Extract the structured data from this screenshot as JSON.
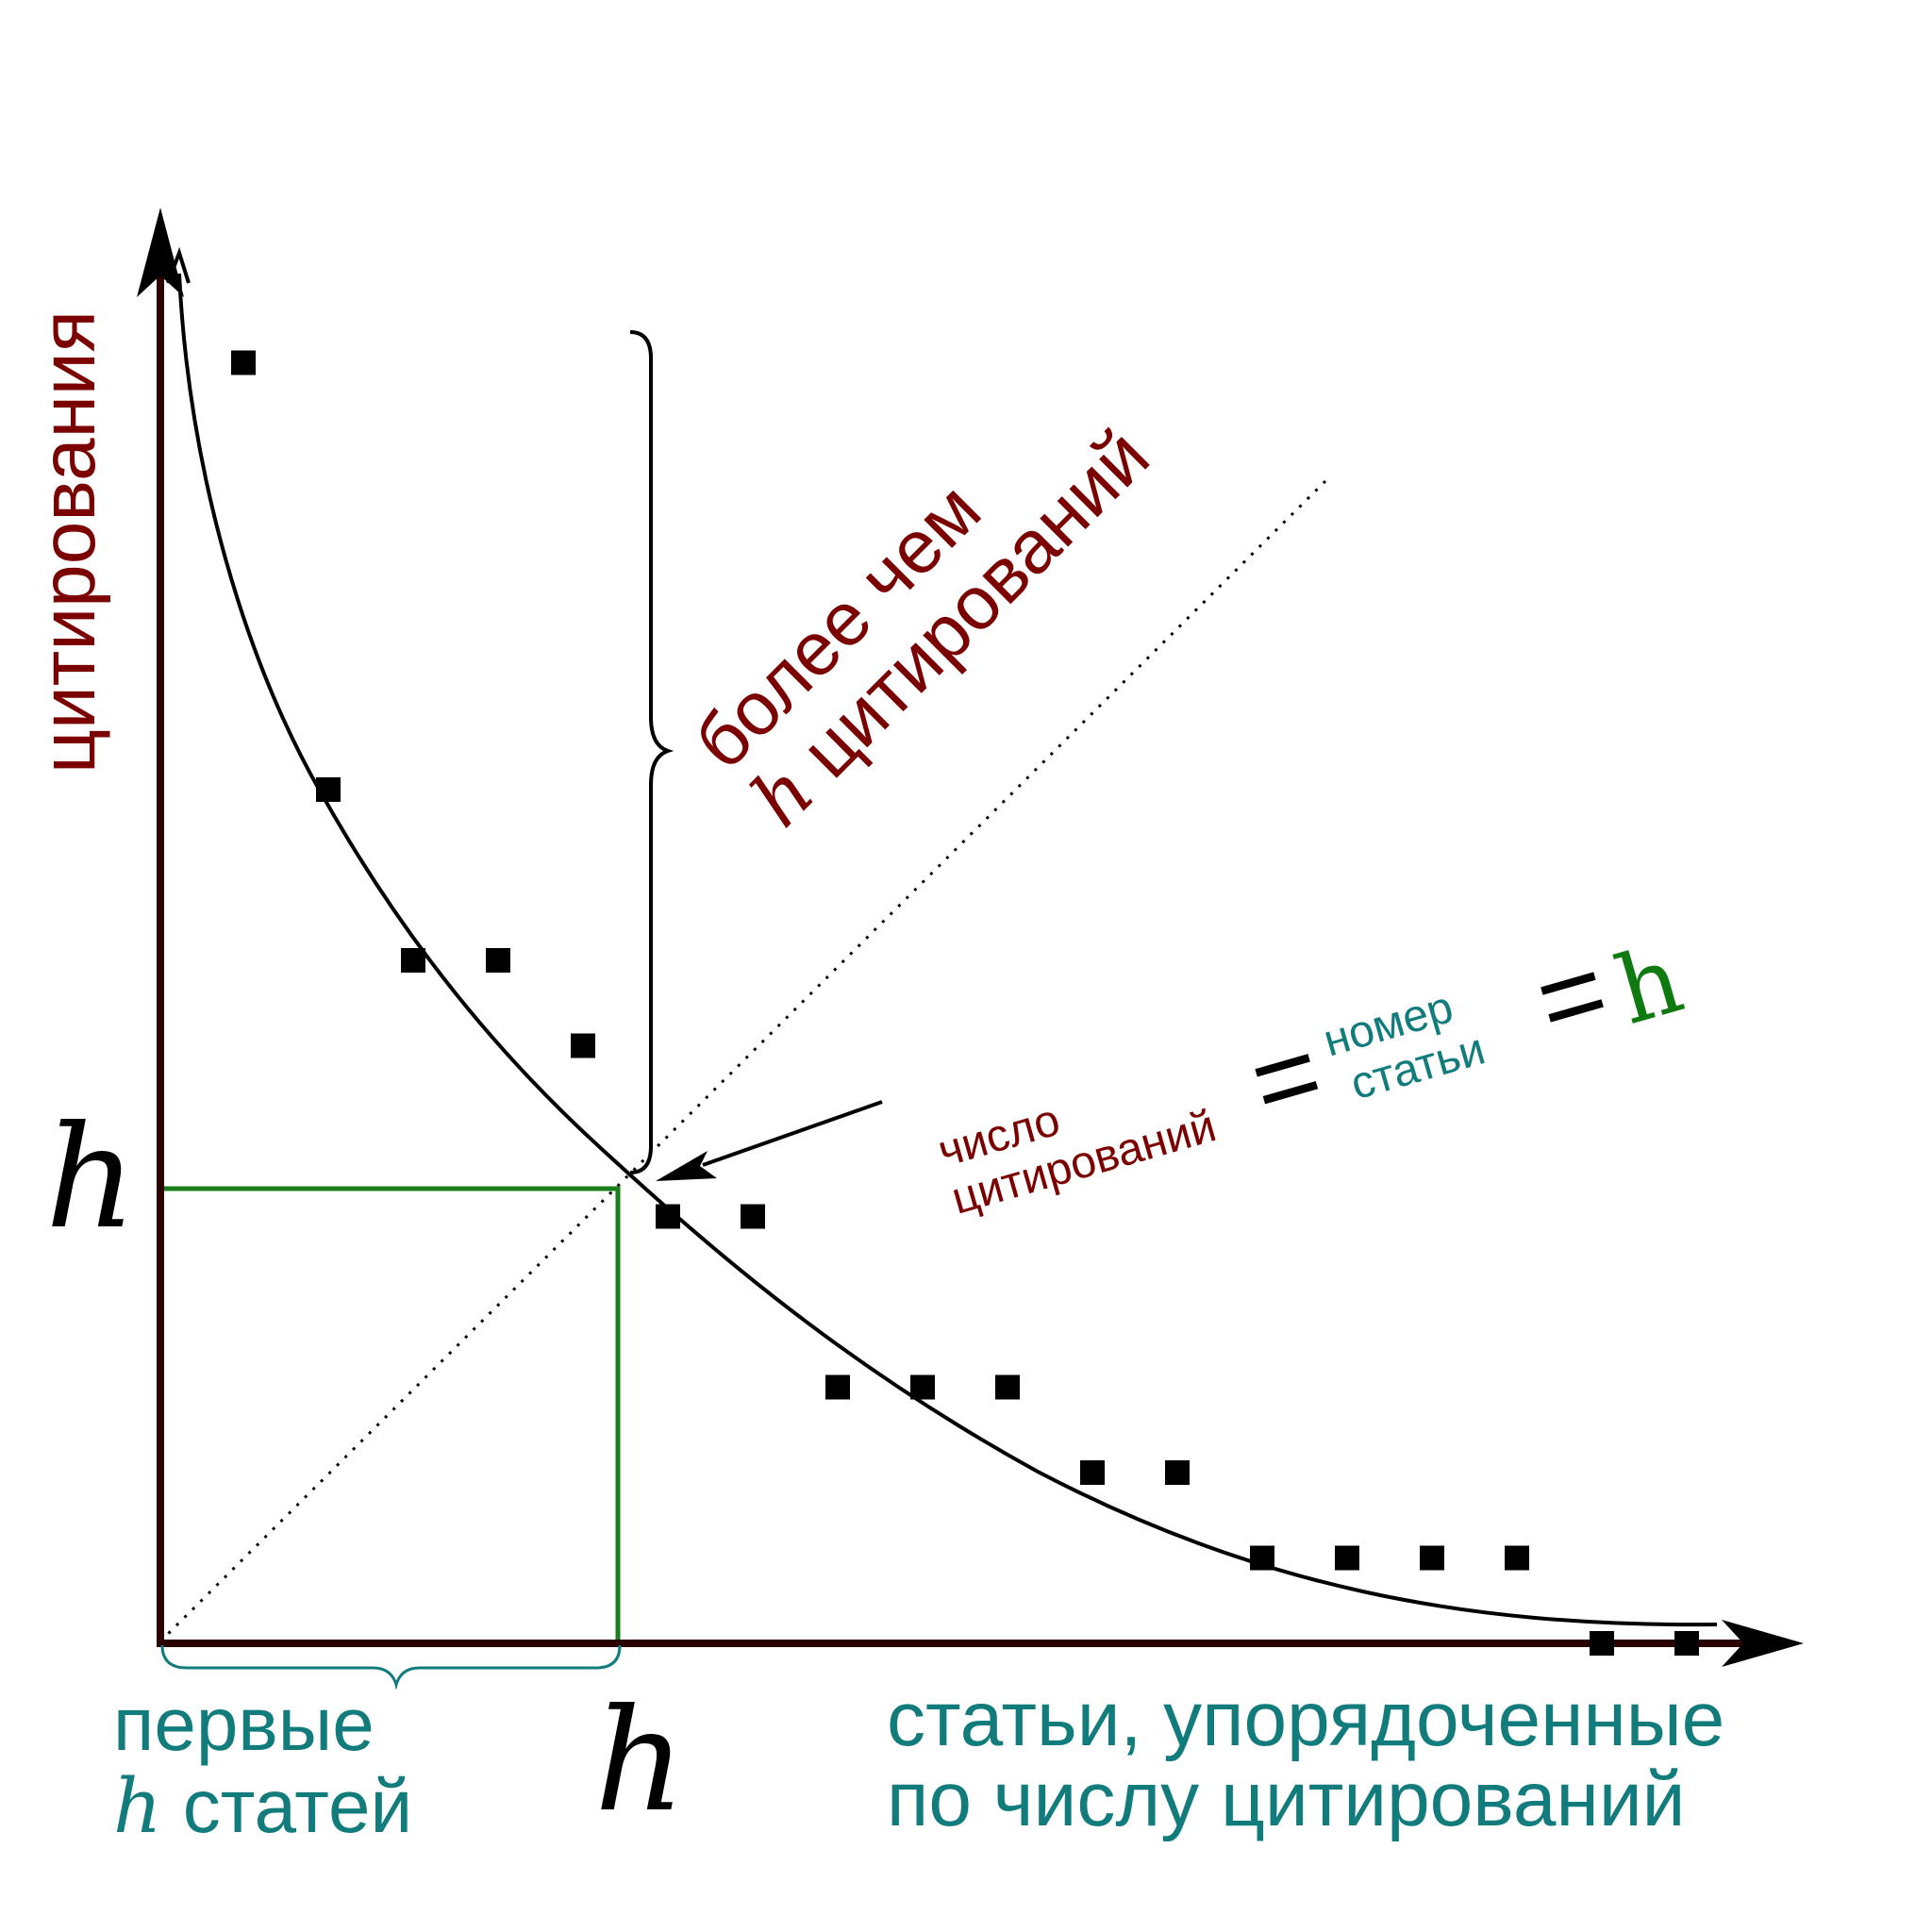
{
  "colors": {
    "axis": "#2b0000",
    "curve": "#000000",
    "points": "#000000",
    "h_box": "#1a7f1a",
    "h_value": "#0f7a0f",
    "citations_text": "#7b0000",
    "papers_text": "#127c7c",
    "diagonal": "#000000"
  },
  "labels": {
    "y_axis": "цитирования",
    "x_axis_line1": "статьи, упорядоченные",
    "x_axis_line2": "по числу цитирований",
    "y_h": "h",
    "x_h": "h",
    "first_line1": "первые",
    "first_h": "h",
    "first_rest": " статей",
    "more_line1": "более чем",
    "more_h": "h",
    "more_rest": " цитирований",
    "eq_citations_line1": "число",
    "eq_citations_line2": "цитирований",
    "eq_sign1": "=",
    "eq_paper_line1": "номер",
    "eq_paper_line2": "статьи",
    "eq_sign2": "=",
    "eq_h": "h"
  },
  "chart_data": {
    "type": "scatter",
    "points": [
      {
        "x": 1,
        "y": 15
      },
      {
        "x": 2,
        "y": 10
      },
      {
        "x": 3,
        "y": 8
      },
      {
        "x": 4,
        "y": 8
      },
      {
        "x": 5,
        "y": 7
      },
      {
        "x": 6,
        "y": 5
      },
      {
        "x": 7,
        "y": 5
      },
      {
        "x": 8,
        "y": 3
      },
      {
        "x": 9,
        "y": 3
      },
      {
        "x": 10,
        "y": 3
      },
      {
        "x": 11,
        "y": 2
      },
      {
        "x": 12,
        "y": 2
      },
      {
        "x": 13,
        "y": 1
      },
      {
        "x": 14,
        "y": 1
      },
      {
        "x": 15,
        "y": 1
      },
      {
        "x": 16,
        "y": 1
      },
      {
        "x": 17,
        "y": 0
      },
      {
        "x": 18,
        "y": 0
      }
    ],
    "h_index": 5.4
  }
}
